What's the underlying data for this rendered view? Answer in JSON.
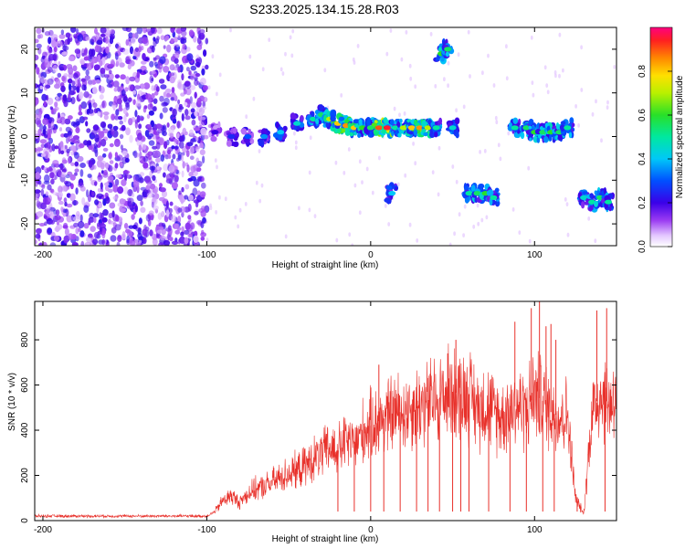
{
  "title": "S233.2025.134.15.28.R03",
  "chart_data": [
    {
      "type": "heatmap",
      "title": "S233.2025.134.15.28.R03",
      "xlabel": "Height of straight line (km)",
      "ylabel": "Frequency (Hz)",
      "xlim": [
        -205,
        150
      ],
      "ylim": [
        -25,
        25
      ],
      "xticks": [
        -200,
        -100,
        0,
        100
      ],
      "yticks": [
        -20,
        -10,
        0,
        10,
        20
      ],
      "colorbar": {
        "label": "Normalized spectral amplitude",
        "range": [
          0.0,
          1.0
        ],
        "ticks": [
          "0.0",
          "0.2",
          "0.4",
          "0.6",
          "0.8"
        ]
      },
      "noise_region": {
        "x": [
          -205,
          -100
        ],
        "amplitude": 0.2
      },
      "echo_track": [
        {
          "x": -95,
          "y": 1,
          "amplitude": 0.2
        },
        {
          "x": -85,
          "y": 0,
          "amplitude": 0.25
        },
        {
          "x": -75,
          "y": 0,
          "amplitude": 0.3
        },
        {
          "x": -65,
          "y": 0,
          "amplitude": 0.35
        },
        {
          "x": -55,
          "y": 1,
          "amplitude": 0.4
        },
        {
          "x": -45,
          "y": 3,
          "amplitude": 0.45
        },
        {
          "x": -35,
          "y": 4,
          "amplitude": 0.5
        },
        {
          "x": -30,
          "y": 5,
          "amplitude": 0.55
        },
        {
          "x": -25,
          "y": 4,
          "amplitude": 0.7
        },
        {
          "x": -20,
          "y": 3,
          "amplitude": 0.8
        },
        {
          "x": -15,
          "y": 2.5,
          "amplitude": 0.85
        },
        {
          "x": -10,
          "y": 2,
          "amplitude": 0.8
        },
        {
          "x": -5,
          "y": 2,
          "amplitude": 0.6
        },
        {
          "x": 0,
          "y": 2,
          "amplitude": 0.55
        },
        {
          "x": 5,
          "y": 2,
          "amplitude": 0.9
        },
        {
          "x": 10,
          "y": 2,
          "amplitude": 0.95
        },
        {
          "x": 15,
          "y": 2,
          "amplitude": 0.5
        },
        {
          "x": 20,
          "y": 2,
          "amplitude": 0.7
        },
        {
          "x": 25,
          "y": 2,
          "amplitude": 0.8
        },
        {
          "x": 30,
          "y": 2,
          "amplitude": 0.85
        },
        {
          "x": 35,
          "y": 2,
          "amplitude": 0.7
        },
        {
          "x": 40,
          "y": 2,
          "amplitude": 0.5
        },
        {
          "x": 43,
          "y": 19,
          "amplitude": 0.6
        },
        {
          "x": 47,
          "y": 20,
          "amplitude": 0.55
        },
        {
          "x": 50,
          "y": 2,
          "amplitude": 0.45
        },
        {
          "x": 13,
          "y": -13,
          "amplitude": 0.4
        },
        {
          "x": 60,
          "y": -13,
          "amplitude": 0.5
        },
        {
          "x": 65,
          "y": -13,
          "amplitude": 0.55
        },
        {
          "x": 70,
          "y": -13,
          "amplitude": 0.6
        },
        {
          "x": 75,
          "y": -14,
          "amplitude": 0.5
        },
        {
          "x": 88,
          "y": 2,
          "amplitude": 0.5
        },
        {
          "x": 95,
          "y": 2,
          "amplitude": 0.55
        },
        {
          "x": 100,
          "y": 1,
          "amplitude": 0.6
        },
        {
          "x": 105,
          "y": 1,
          "amplitude": 0.55
        },
        {
          "x": 110,
          "y": 1,
          "amplitude": 0.6
        },
        {
          "x": 115,
          "y": 1,
          "amplitude": 0.55
        },
        {
          "x": 120,
          "y": 2,
          "amplitude": 0.5
        },
        {
          "x": 130,
          "y": -14,
          "amplitude": 0.45
        },
        {
          "x": 135,
          "y": -15,
          "amplitude": 0.5
        },
        {
          "x": 140,
          "y": -14,
          "amplitude": 0.55
        },
        {
          "x": 145,
          "y": -15,
          "amplitude": 0.5
        }
      ]
    },
    {
      "type": "line",
      "xlabel": "Height of straight line (km)",
      "ylabel": "SNR (10 * v/v)",
      "xlim": [
        -205,
        150
      ],
      "ylim": [
        0,
        970
      ],
      "xticks": [
        -200,
        -100,
        0,
        100
      ],
      "yticks": [
        0,
        200,
        400,
        600,
        800
      ],
      "color": "#e8302a",
      "x": [
        -205,
        -195,
        -185,
        -175,
        -165,
        -155,
        -145,
        -135,
        -125,
        -115,
        -105,
        -100,
        -95,
        -90,
        -85,
        -80,
        -75,
        -70,
        -65,
        -60,
        -55,
        -50,
        -45,
        -40,
        -35,
        -30,
        -25,
        -20,
        -15,
        -10,
        -5,
        0,
        5,
        10,
        15,
        20,
        25,
        30,
        35,
        40,
        45,
        50,
        55,
        60,
        65,
        70,
        75,
        80,
        85,
        90,
        95,
        100,
        105,
        110,
        115,
        120,
        125,
        130,
        135,
        140,
        145,
        150
      ],
      "y": [
        20,
        20,
        20,
        20,
        20,
        20,
        20,
        20,
        20,
        20,
        20,
        20,
        40,
        90,
        110,
        80,
        120,
        140,
        150,
        170,
        190,
        210,
        220,
        240,
        270,
        290,
        320,
        310,
        350,
        330,
        390,
        420,
        440,
        460,
        480,
        480,
        500,
        510,
        520,
        540,
        550,
        570,
        560,
        560,
        500,
        520,
        480,
        460,
        500,
        510,
        490,
        560,
        530,
        480,
        460,
        470,
        100,
        30,
        480,
        560,
        520,
        550
      ],
      "spikes": [
        {
          "x": 5,
          "y": 690
        },
        {
          "x": 47,
          "y": 740
        },
        {
          "x": 52,
          "y": 800
        },
        {
          "x": 88,
          "y": 880
        },
        {
          "x": 98,
          "y": 940
        },
        {
          "x": 103,
          "y": 970
        },
        {
          "x": 107,
          "y": 860
        },
        {
          "x": 110,
          "y": 870
        },
        {
          "x": 113,
          "y": 800
        },
        {
          "x": 138,
          "y": 930
        },
        {
          "x": 144,
          "y": 940
        }
      ],
      "dropouts": [
        -20,
        -10,
        0,
        8,
        18,
        28,
        35,
        42,
        50,
        55,
        60,
        72,
        85,
        95,
        105,
        112,
        126,
        143
      ]
    }
  ]
}
